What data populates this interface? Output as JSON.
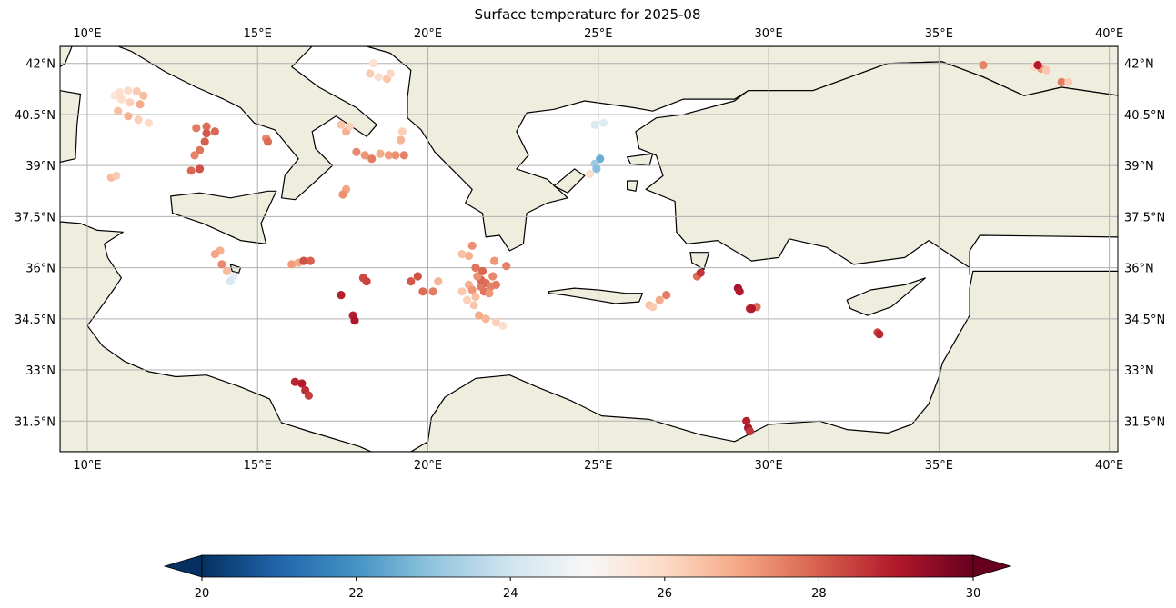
{
  "title": "Surface temperature for 2025-08",
  "map": {
    "projection": "PlateCarree",
    "extent": {
      "lon": [
        9.2,
        40.25
      ],
      "lat": [
        30.6,
        42.5
      ]
    },
    "gridlines": true,
    "land_color": "#efedde",
    "ocean_color": "#ffffff",
    "coastline_color": "#000000",
    "lon_ticks": [
      {
        "value": 10,
        "label": "10°E"
      },
      {
        "value": 15,
        "label": "15°E"
      },
      {
        "value": 20,
        "label": "20°E"
      },
      {
        "value": 25,
        "label": "25°E"
      },
      {
        "value": 30,
        "label": "30°E"
      },
      {
        "value": 35,
        "label": "35°E"
      },
      {
        "value": 40,
        "label": "40°E"
      }
    ],
    "lat_ticks": [
      {
        "value": 42,
        "label": "42°N"
      },
      {
        "value": 40.5,
        "label": "40.5°N"
      },
      {
        "value": 39,
        "label": "39°N"
      },
      {
        "value": 37.5,
        "label": "37.5°N"
      },
      {
        "value": 36,
        "label": "36°N"
      },
      {
        "value": 34.5,
        "label": "34.5°N"
      },
      {
        "value": 33,
        "label": "33°N"
      },
      {
        "value": 31.5,
        "label": "31.5°N"
      }
    ]
  },
  "colorbar": {
    "cmap": "RdBu_r",
    "range": [
      20,
      30
    ],
    "extend": "both",
    "ticks": [
      {
        "value": 20,
        "label": "20"
      },
      {
        "value": 22,
        "label": "22"
      },
      {
        "value": 24,
        "label": "24"
      },
      {
        "value": 26,
        "label": "26"
      },
      {
        "value": 28,
        "label": "28"
      },
      {
        "value": 30,
        "label": "30"
      }
    ]
  },
  "chart_data": {
    "type": "scatter",
    "x_field": "longitude",
    "y_field": "latitude",
    "value_field": "surface_temperature",
    "points": [
      [
        10.8,
        41.05,
        25.6
      ],
      [
        10.95,
        41.15,
        25.8
      ],
      [
        11.2,
        41.2,
        26.0
      ],
      [
        11.45,
        41.18,
        26.3
      ],
      [
        11.65,
        41.05,
        26.6
      ],
      [
        11.55,
        40.8,
        26.9
      ],
      [
        11.25,
        40.85,
        26.2
      ],
      [
        11.0,
        40.95,
        25.9
      ],
      [
        10.9,
        40.6,
        26.5
      ],
      [
        11.2,
        40.45,
        26.8
      ],
      [
        11.5,
        40.35,
        26.2
      ],
      [
        11.8,
        40.25,
        26.0
      ],
      [
        13.2,
        40.1,
        27.6
      ],
      [
        13.5,
        40.15,
        27.8
      ],
      [
        13.75,
        40.0,
        27.9
      ],
      [
        13.5,
        39.95,
        28.1
      ],
      [
        13.45,
        39.7,
        28.0
      ],
      [
        13.3,
        39.45,
        27.7
      ],
      [
        13.15,
        39.3,
        27.5
      ],
      [
        13.05,
        38.85,
        27.9
      ],
      [
        13.3,
        38.9,
        28.2
      ],
      [
        10.7,
        38.65,
        26.6
      ],
      [
        10.85,
        38.7,
        26.3
      ],
      [
        15.25,
        39.8,
        27.4
      ],
      [
        15.3,
        39.7,
        27.8
      ],
      [
        17.45,
        40.2,
        26.4
      ],
      [
        17.6,
        40.0,
        26.8
      ],
      [
        17.7,
        40.15,
        26.2
      ],
      [
        18.3,
        41.7,
        26.3
      ],
      [
        18.55,
        41.6,
        25.9
      ],
      [
        18.8,
        41.55,
        26.4
      ],
      [
        18.9,
        41.7,
        26.1
      ],
      [
        18.4,
        42.0,
        25.8
      ],
      [
        17.9,
        39.4,
        27.4
      ],
      [
        18.15,
        39.3,
        27.2
      ],
      [
        18.35,
        39.2,
        27.6
      ],
      [
        18.6,
        39.35,
        26.9
      ],
      [
        18.85,
        39.3,
        27.1
      ],
      [
        19.05,
        39.3,
        27.3
      ],
      [
        19.3,
        39.3,
        27.5
      ],
      [
        19.2,
        39.75,
        26.7
      ],
      [
        19.25,
        40.0,
        26.2
      ],
      [
        17.6,
        38.3,
        27.0
      ],
      [
        17.5,
        38.15,
        27.3
      ],
      [
        13.9,
        36.5,
        26.8
      ],
      [
        13.75,
        36.4,
        27.0
      ],
      [
        13.95,
        36.1,
        27.4
      ],
      [
        14.1,
        35.9,
        26.6
      ],
      [
        14.3,
        35.75,
        24.5
      ],
      [
        14.2,
        35.6,
        24.2
      ],
      [
        16.0,
        36.1,
        27.1
      ],
      [
        16.2,
        36.15,
        26.9
      ],
      [
        16.35,
        36.2,
        28.2
      ],
      [
        16.55,
        36.2,
        28.0
      ],
      [
        18.1,
        35.7,
        28.3
      ],
      [
        18.2,
        35.6,
        28.4
      ],
      [
        17.45,
        35.2,
        28.9
      ],
      [
        17.8,
        34.6,
        28.9
      ],
      [
        17.85,
        34.45,
        29.1
      ],
      [
        19.5,
        35.6,
        28.1
      ],
      [
        19.7,
        35.75,
        28.2
      ],
      [
        19.85,
        35.3,
        27.8
      ],
      [
        20.15,
        35.3,
        27.6
      ],
      [
        20.3,
        35.6,
        26.7
      ],
      [
        21.0,
        35.3,
        26.3
      ],
      [
        21.2,
        35.5,
        26.8
      ],
      [
        21.3,
        35.35,
        27.2
      ],
      [
        21.4,
        35.15,
        26.5
      ],
      [
        21.15,
        35.05,
        26.2
      ],
      [
        21.35,
        34.9,
        26.4
      ],
      [
        21.55,
        35.45,
        27.6
      ],
      [
        21.55,
        35.65,
        27.9
      ],
      [
        21.7,
        35.55,
        27.8
      ],
      [
        21.85,
        35.45,
        27.5
      ],
      [
        21.65,
        35.3,
        27.7
      ],
      [
        21.45,
        35.75,
        27.3
      ],
      [
        21.9,
        35.75,
        27.4
      ],
      [
        22.0,
        35.5,
        27.6
      ],
      [
        21.8,
        35.25,
        27.2
      ],
      [
        22.3,
        36.05,
        27.5
      ],
      [
        21.95,
        36.2,
        27.2
      ],
      [
        21.3,
        36.65,
        27.3
      ],
      [
        21.2,
        36.35,
        26.8
      ],
      [
        21.0,
        36.4,
        26.5
      ],
      [
        21.6,
        35.9,
        27.9
      ],
      [
        21.4,
        36.0,
        27.7
      ],
      [
        21.5,
        34.6,
        26.9
      ],
      [
        21.7,
        34.5,
        26.7
      ],
      [
        22.0,
        34.4,
        26.2
      ],
      [
        22.2,
        34.3,
        25.9
      ],
      [
        24.9,
        40.2,
        24.2
      ],
      [
        25.15,
        40.25,
        24.4
      ],
      [
        25.05,
        39.2,
        22.5
      ],
      [
        24.9,
        39.05,
        23.2
      ],
      [
        24.95,
        38.9,
        22.9
      ],
      [
        24.75,
        38.75,
        25.9
      ],
      [
        26.5,
        34.9,
        26.5
      ],
      [
        26.6,
        34.85,
        26.3
      ],
      [
        26.8,
        35.05,
        26.9
      ],
      [
        27.0,
        35.2,
        27.6
      ],
      [
        27.9,
        35.75,
        27.8
      ],
      [
        28.0,
        35.85,
        28.6
      ],
      [
        29.1,
        35.4,
        29.2
      ],
      [
        29.15,
        35.3,
        29.0
      ],
      [
        29.45,
        34.8,
        28.7
      ],
      [
        29.65,
        34.85,
        27.8
      ],
      [
        29.5,
        34.8,
        29.0
      ],
      [
        33.2,
        34.1,
        28.4
      ],
      [
        33.25,
        34.05,
        28.8
      ],
      [
        29.35,
        31.5,
        28.9
      ],
      [
        29.4,
        31.3,
        29.1
      ],
      [
        29.45,
        31.2,
        28.6
      ],
      [
        16.1,
        32.65,
        28.8
      ],
      [
        16.3,
        32.6,
        29.0
      ],
      [
        16.4,
        32.4,
        28.7
      ],
      [
        16.5,
        32.25,
        28.5
      ],
      [
        36.3,
        41.95,
        27.5
      ],
      [
        37.8,
        41.9,
        26.0
      ],
      [
        38.0,
        41.85,
        27.2
      ],
      [
        38.15,
        41.8,
        26.4
      ],
      [
        38.6,
        41.45,
        27.6
      ],
      [
        38.8,
        41.45,
        26.3
      ],
      [
        37.9,
        41.95,
        29.0
      ]
    ]
  }
}
